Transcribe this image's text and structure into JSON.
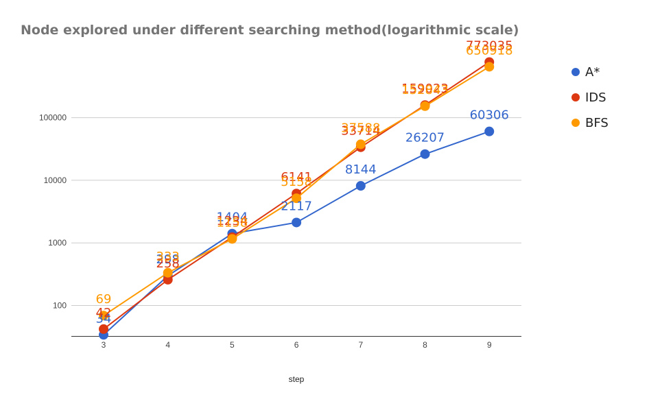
{
  "chart_data": {
    "type": "line",
    "title": "Node explored under different searching method(logarithmic scale)",
    "xlabel": "step",
    "ylabel": "",
    "y_scale": "log",
    "ylim": [
      30,
      900000
    ],
    "grid": true,
    "legend_position": "right",
    "x": [
      3,
      4,
      5,
      6,
      7,
      8,
      9
    ],
    "y_ticks": [
      "100",
      "1000",
      "10000",
      "100000"
    ],
    "series": [
      {
        "name": "A*",
        "color": "#3366cc",
        "values": [
          34,
          298,
          1404,
          2117,
          8144,
          26207,
          60306
        ]
      },
      {
        "name": "IDS",
        "color": "#dc3912",
        "values": [
          42,
          258,
          1234,
          6141,
          33714,
          159023,
          773035
        ]
      },
      {
        "name": "BFS",
        "color": "#ff9900",
        "values": [
          69,
          333,
          1158,
          5158,
          37588,
          152843,
          650918
        ]
      }
    ]
  }
}
